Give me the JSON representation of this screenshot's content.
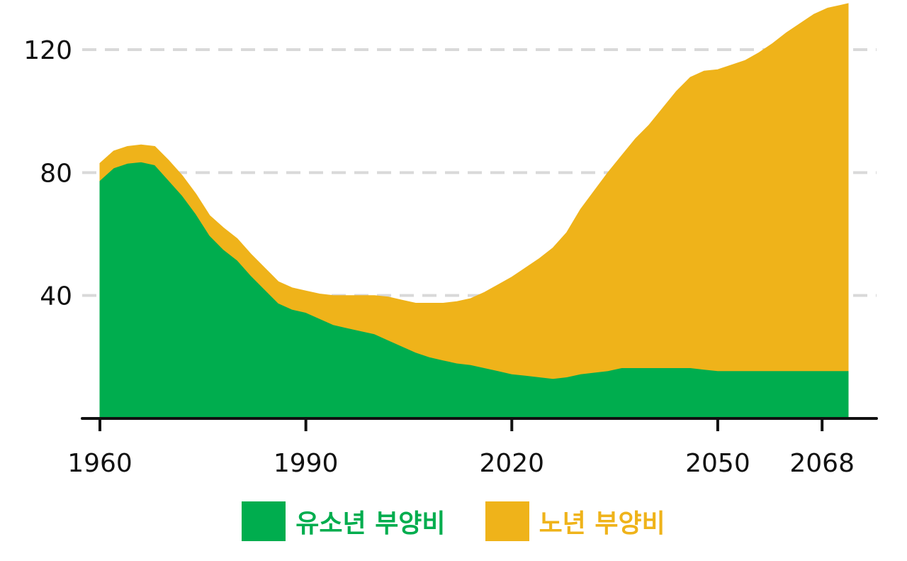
{
  "chart_data": {
    "type": "area",
    "stacked": true,
    "title": "",
    "xlabel": "",
    "ylabel": "",
    "ylim": [
      0,
      120
    ],
    "xlim": [
      1960,
      2070
    ],
    "x_ticks": [
      "1960",
      "1990",
      "2020",
      "2050",
      "2068"
    ],
    "x_tick_values": [
      1960,
      1990,
      2020,
      2050,
      2068
    ],
    "y_ticks": [
      "40",
      "80",
      "120"
    ],
    "y_tick_values": [
      40,
      80,
      120
    ],
    "grid": "horizontal-dashed",
    "x": [
      1960,
      1962,
      1964,
      1966,
      1968,
      1970,
      1972,
      1974,
      1976,
      1978,
      1980,
      1982,
      1984,
      1986,
      1988,
      1990,
      1992,
      1994,
      1996,
      1998,
      2000,
      2002,
      2004,
      2006,
      2008,
      2010,
      2012,
      2014,
      2016,
      2018,
      2020,
      2022,
      2024,
      2026,
      2028,
      2030,
      2032,
      2034,
      2036,
      2038,
      2040,
      2042,
      2044,
      2046,
      2048,
      2050,
      2052,
      2054,
      2056,
      2058,
      2060,
      2062,
      2064,
      2066,
      2068,
      2070
    ],
    "series": [
      {
        "name": "유소년 부양비",
        "color": "#00AD4E",
        "values": [
          77.5,
          81.5,
          83,
          83.5,
          82.5,
          77.5,
          72.5,
          66.5,
          59.5,
          55,
          51.5,
          46.5,
          42,
          37.5,
          35.5,
          34.5,
          32.5,
          30.5,
          29.5,
          28.5,
          27.5,
          25.5,
          23.5,
          21.5,
          20,
          19,
          18,
          17.5,
          16.5,
          15.5,
          14.5,
          14,
          13.5,
          13,
          13.5,
          14.5,
          15,
          15.5,
          16.5,
          16.5,
          16.5,
          16.5,
          16.5,
          16.5,
          16,
          15.5,
          15.5,
          15.5,
          15.5,
          15.5,
          15.5,
          15.5,
          15.5,
          15.5,
          15.5,
          15.5
        ]
      },
      {
        "name": "노년 부양비",
        "color": "#EFB31A",
        "values": [
          5.5,
          5.5,
          5.5,
          5.5,
          6,
          6.5,
          6.5,
          6.5,
          6.5,
          7,
          7,
          7,
          7,
          7,
          7,
          7,
          8,
          9.5,
          10.5,
          11.5,
          12.5,
          14,
          15,
          16,
          17.5,
          18.5,
          20,
          21.5,
          24.5,
          28,
          31.5,
          35,
          38.5,
          42.5,
          47,
          53.5,
          59,
          64.5,
          69,
          74.5,
          79,
          84.5,
          90,
          94.5,
          97,
          98,
          99.5,
          101,
          103.5,
          106.5,
          110,
          113,
          116,
          118,
          119,
          119.5
        ]
      }
    ],
    "legend": "bottom-center"
  }
}
